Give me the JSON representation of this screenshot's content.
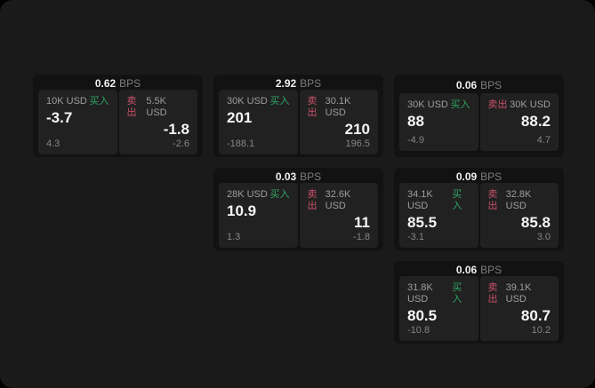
{
  "labels": {
    "bps": "BPS",
    "buy": "买入",
    "sell": "卖出"
  },
  "colors": {
    "page_bg": "#1a1a1a",
    "card_bg": "#121212",
    "panel_bg": "#212121",
    "buy_green": "#2fa566",
    "sell_red": "#c9516a"
  },
  "cards": [
    {
      "bps": "0.62",
      "buy": {
        "amount": "10K USD",
        "value": "-3.7",
        "sub": "4.3"
      },
      "sell": {
        "amount": "5.5K USD",
        "value": "-1.8",
        "sub": "-2.6"
      }
    },
    {
      "bps": "2.92",
      "buy": {
        "amount": "30K USD",
        "value": "201",
        "sub": "-188.1"
      },
      "sell": {
        "amount": "30.1K USD",
        "value": "210",
        "sub": "196.5"
      }
    },
    {
      "bps": "0.06",
      "buy": {
        "amount": "30K USD",
        "value": "88",
        "sub": "-4.9"
      },
      "sell": {
        "amount": "30K USD",
        "value": "88.2",
        "sub": "4.7"
      }
    },
    {
      "bps": "0.03",
      "buy": {
        "amount": "28K USD",
        "value": "10.9",
        "sub": "1.3"
      },
      "sell": {
        "amount": "32.6K USD",
        "value": "11",
        "sub": "-1.8"
      }
    },
    {
      "bps": "0.09",
      "buy": {
        "amount": "34.1K USD",
        "value": "85.5",
        "sub": "-3.1"
      },
      "sell": {
        "amount": "32.8K USD",
        "value": "85.8",
        "sub": "3.0"
      }
    },
    {
      "bps": "0.06",
      "buy": {
        "amount": "31.8K USD",
        "value": "80.5",
        "sub": "-10.8"
      },
      "sell": {
        "amount": "39.1K USD",
        "value": "80.7",
        "sub": "10.2"
      }
    }
  ]
}
